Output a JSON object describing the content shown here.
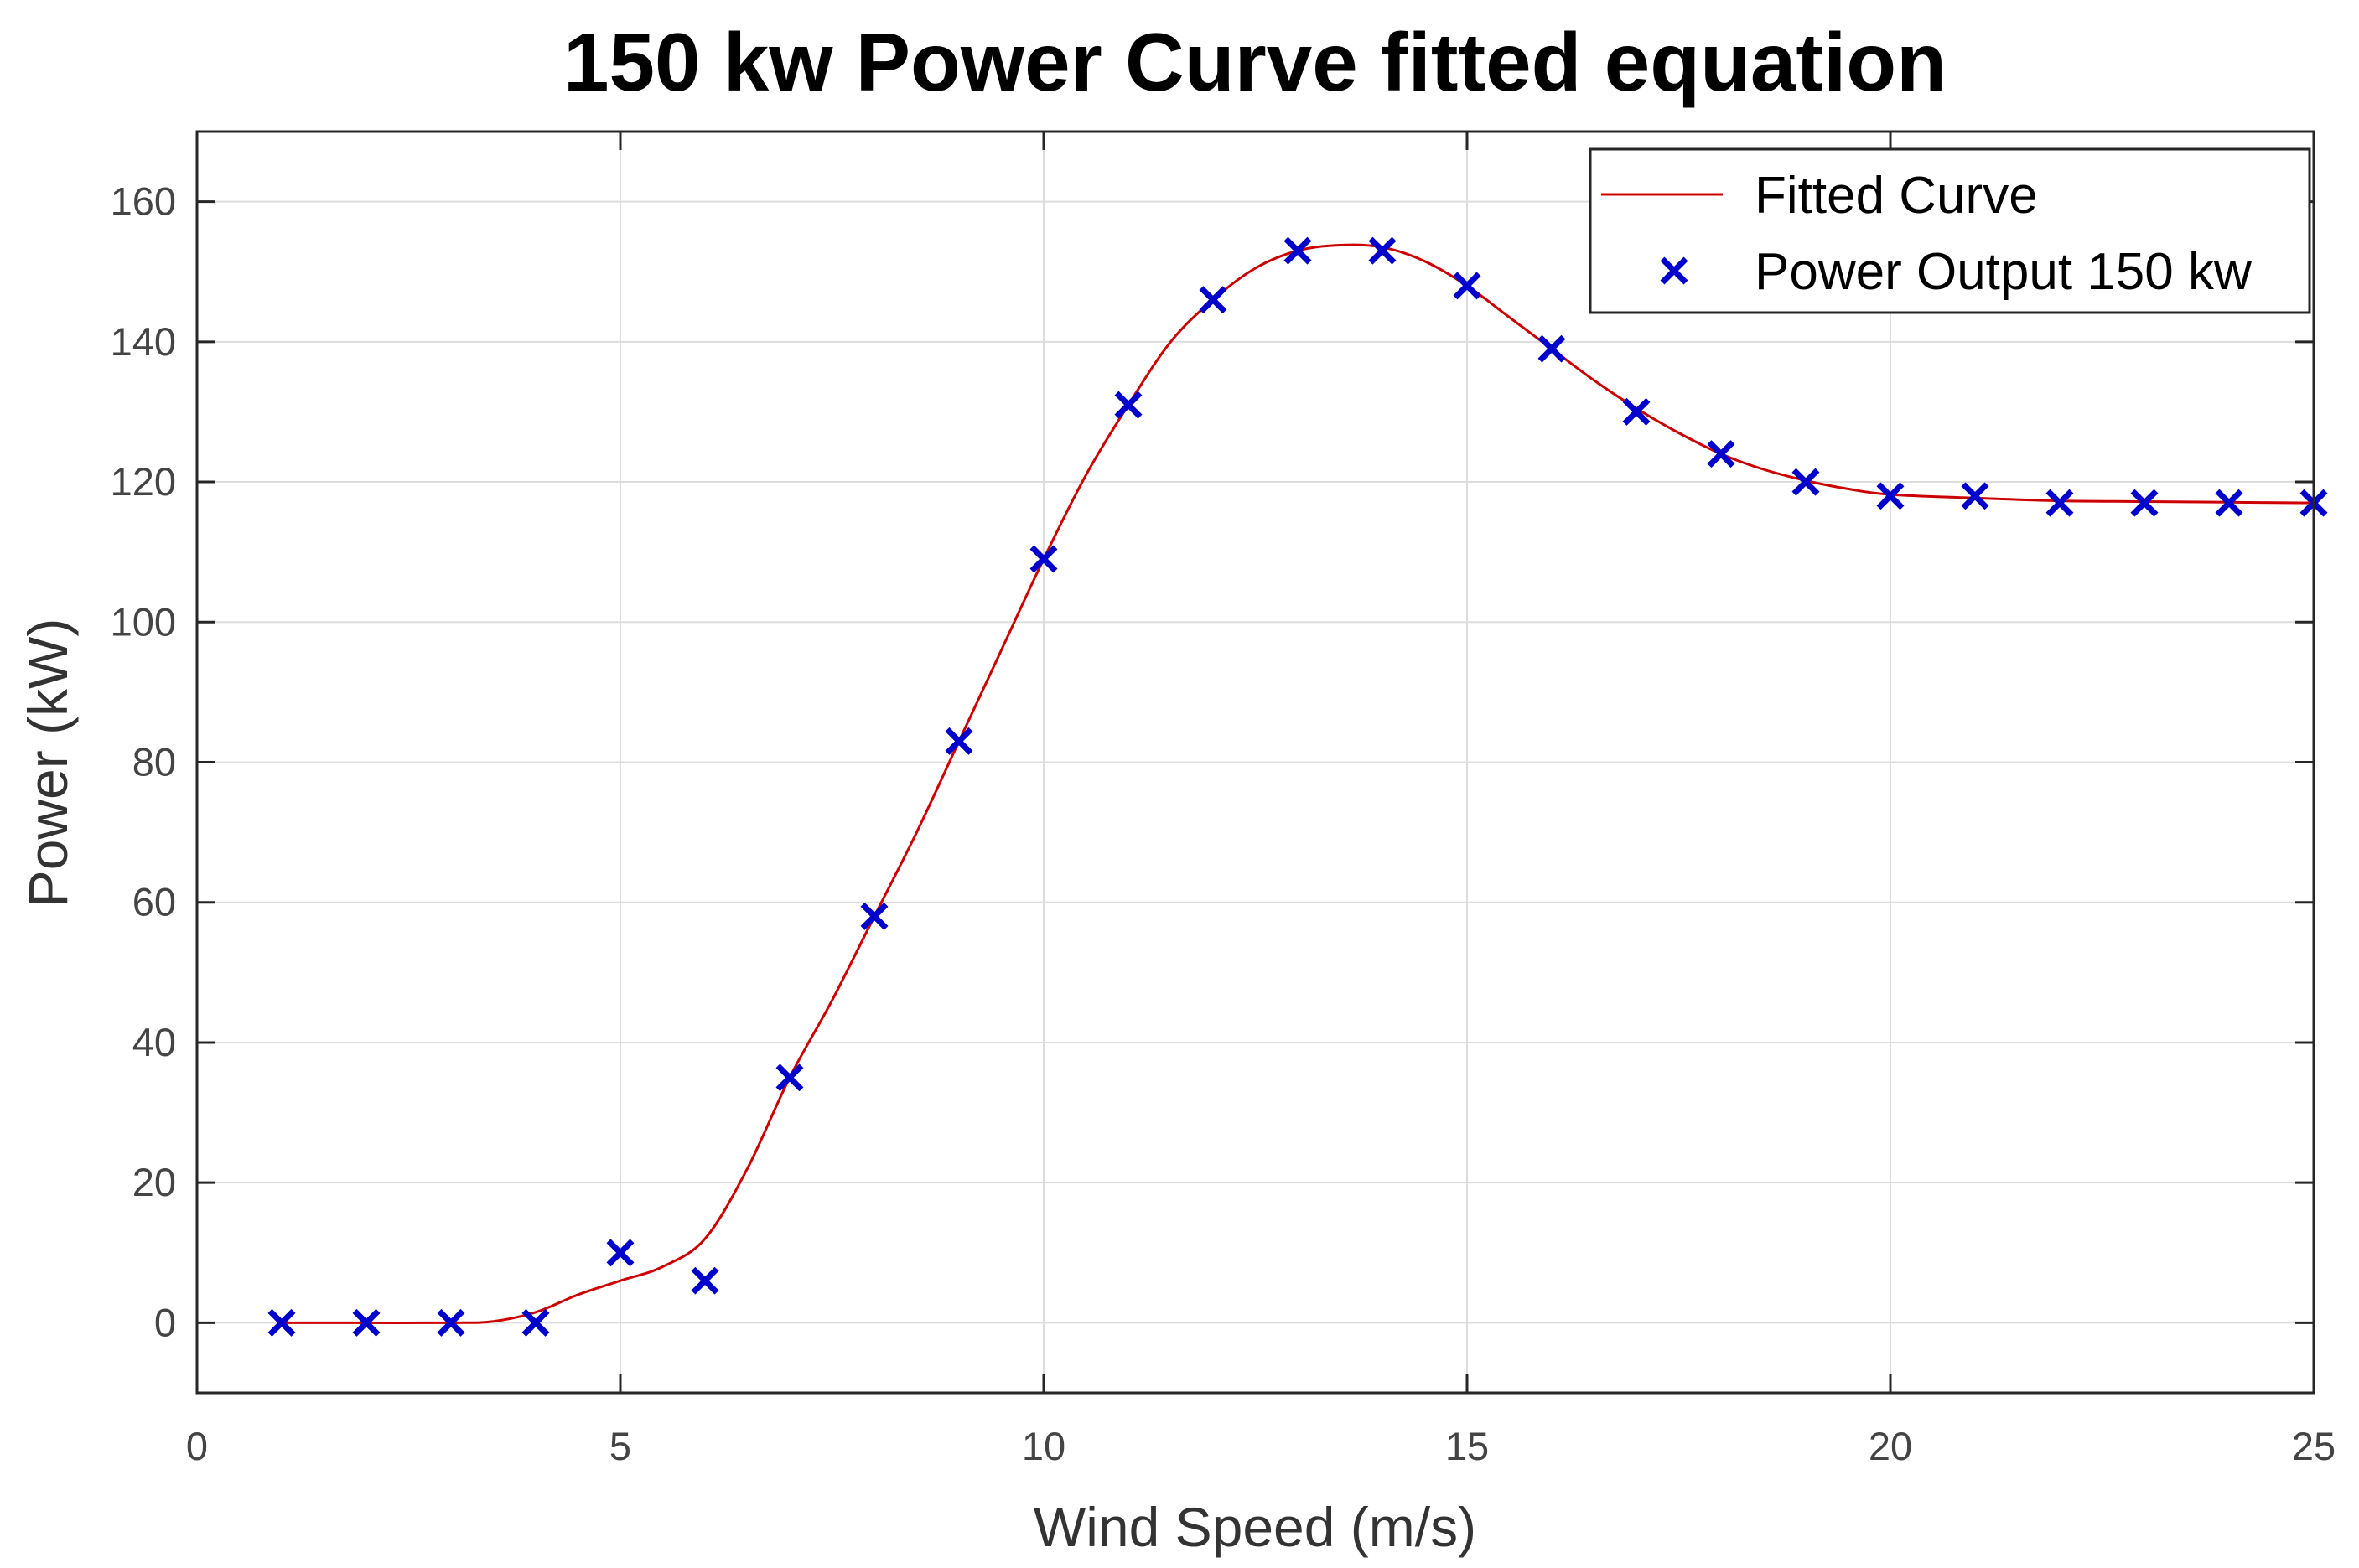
{
  "chart_data": {
    "type": "line",
    "title": "150 kw Power Curve fitted equation",
    "xlabel": "Wind Speed (m/s)",
    "ylabel": "Power (kW)",
    "xlim": [
      0,
      25
    ],
    "ylim": [
      -10,
      170
    ],
    "xticks": [
      0,
      5,
      10,
      15,
      20,
      25
    ],
    "yticks": [
      0,
      20,
      40,
      60,
      80,
      100,
      120,
      140,
      160
    ],
    "grid": true,
    "legend_position": "top-right",
    "series": [
      {
        "name": "Fitted Curve",
        "type": "line",
        "color": "#cc0000",
        "x": [
          1,
          2,
          3,
          3.5,
          4,
          4.5,
          5,
          5.5,
          6,
          6.5,
          7,
          7.5,
          8,
          8.5,
          9,
          9.5,
          10,
          10.5,
          11,
          11.5,
          12,
          12.5,
          13,
          13.5,
          14,
          14.5,
          15,
          15.5,
          16,
          16.5,
          17,
          17.5,
          18,
          18.5,
          19,
          19.5,
          20,
          21,
          22,
          23,
          24,
          25
        ],
        "y": [
          0,
          0,
          0,
          0.2,
          1.5,
          4,
          6,
          8,
          12,
          22,
          35,
          46,
          58,
          70,
          83,
          96,
          109,
          121,
          131,
          140,
          146,
          150.5,
          153,
          153.8,
          153.5,
          151.5,
          148,
          143.5,
          139,
          134.5,
          130.5,
          127,
          124,
          121.8,
          120.2,
          119,
          118.2,
          117.7,
          117.3,
          117.2,
          117.1,
          117
        ]
      },
      {
        "name": "Power Output 150 kw",
        "type": "scatter",
        "marker": "x",
        "color": "#0000cc",
        "x": [
          1,
          2,
          3,
          4,
          5,
          6,
          7,
          8,
          9,
          10,
          11,
          12,
          13,
          14,
          15,
          16,
          17,
          18,
          19,
          20,
          21,
          22,
          23,
          24,
          25
        ],
        "y": [
          0,
          0,
          0,
          0,
          10,
          6,
          35,
          58,
          83,
          109,
          131,
          146,
          153,
          153,
          148,
          139,
          130,
          124,
          120,
          118,
          118,
          117,
          117,
          117,
          117
        ]
      }
    ]
  }
}
